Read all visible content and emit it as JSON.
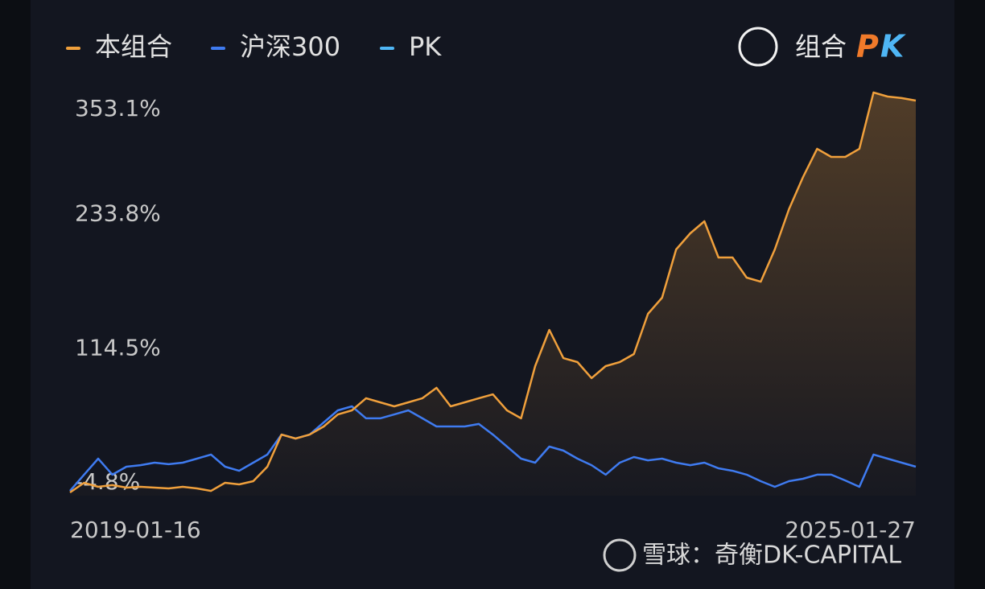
{
  "chart_data": {
    "type": "line",
    "categories": [
      "2019-01-16",
      null,
      null,
      null,
      null,
      null,
      null,
      null,
      null,
      null,
      null,
      null,
      null,
      null,
      null,
      null,
      null,
      null,
      null,
      null,
      null,
      null,
      null,
      null,
      null,
      null,
      null,
      null,
      null,
      null,
      null,
      null,
      null,
      null,
      null,
      null,
      null,
      null,
      null,
      null,
      null,
      null,
      null,
      null,
      null,
      null,
      null,
      null,
      null,
      null,
      null,
      null,
      null,
      null,
      null,
      null,
      null,
      null,
      null,
      null,
      "2025-01-27"
    ],
    "series": [
      {
        "name": "本组合",
        "color": "#f0a03c",
        "fill": true,
        "values": [
          -13.4,
          -4.8,
          -8.4,
          -6.9,
          -9.1,
          -8.4,
          -9.1,
          -9.8,
          -8.4,
          -9.8,
          -12.0,
          -4.8,
          -6.2,
          -3.4,
          9.5,
          38.1,
          34.6,
          38.1,
          45.3,
          56.0,
          59.6,
          70.4,
          66.8,
          63.2,
          66.8,
          70.4,
          79.7,
          63.2,
          66.8,
          70.4,
          73.9,
          59.6,
          52.5,
          99.0,
          131.2,
          106.1,
          102.6,
          88.3,
          99.0,
          102.6,
          109.7,
          145.5,
          159.8,
          202.8,
          217.1,
          227.8,
          195.6,
          195.6,
          177.7,
          174.1,
          202.8,
          238.6,
          267.2,
          292.3,
          285.1,
          285.1,
          292.3,
          342.4,
          338.8,
          337.4,
          335.2
        ]
      },
      {
        "name": "沪深300",
        "color": "#3f7bf0",
        "fill": false,
        "values": [
          -12.0,
          2.4,
          16.7,
          2.4,
          9.5,
          10.9,
          13.1,
          11.7,
          13.1,
          16.7,
          20.3,
          9.5,
          5.9,
          13.1,
          20.3,
          38.1,
          34.6,
          38.1,
          48.9,
          59.6,
          63.2,
          52.5,
          52.5,
          56.0,
          59.6,
          52.5,
          45.3,
          45.3,
          45.3,
          47.5,
          38.1,
          27.4,
          16.7,
          13.1,
          27.4,
          23.8,
          16.7,
          10.9,
          2.4,
          13.1,
          18.1,
          15.2,
          16.7,
          13.1,
          10.9,
          13.1,
          8.1,
          5.9,
          2.4,
          -3.4,
          -8.4,
          -3.4,
          -1.2,
          2.4,
          2.4,
          -2.7,
          -8.4,
          20.3,
          16.7,
          13.1,
          9.5
        ]
      },
      {
        "name": "PK",
        "color": "#4fb6f5",
        "fill": false,
        "values": [
          null,
          null,
          null,
          null,
          null,
          null,
          null,
          null,
          null,
          null,
          null,
          null,
          null,
          null,
          null,
          null,
          null,
          null,
          null,
          null,
          null,
          null,
          null,
          null,
          null,
          null,
          null,
          null,
          null,
          null,
          null,
          null,
          null,
          null,
          null,
          null,
          null,
          null,
          null,
          null,
          null,
          null,
          null,
          null,
          null,
          null,
          null,
          null,
          null,
          null,
          null,
          null,
          null,
          null,
          null,
          null,
          null,
          null,
          null,
          null,
          null
        ]
      }
    ],
    "ylim": [
      -4.8,
      353.1
    ],
    "yticks": [
      {
        "value": -4.8,
        "label": "-4.8%"
      },
      {
        "value": 114.5,
        "label": "114.5%"
      },
      {
        "value": 233.8,
        "label": "233.8%"
      },
      {
        "value": 353.1,
        "label": "353.1%"
      }
    ],
    "grid": false
  },
  "pk_button": {
    "label": "组合",
    "badge_left": "P",
    "badge_right": "K"
  },
  "watermark": "雪球：奇衡DK-CAPITAL"
}
